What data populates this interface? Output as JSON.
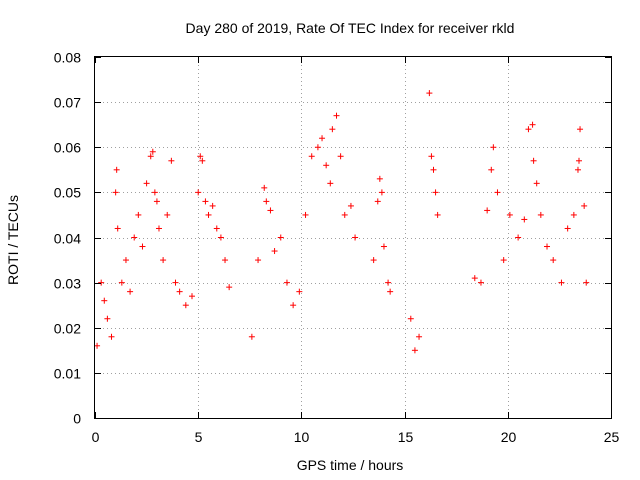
{
  "chart_data": {
    "type": "scatter",
    "title": "Day 280 of 2019, Rate Of TEC Index for receiver rkld",
    "xlabel": "GPS time / hours",
    "ylabel": "ROTI / TECUs",
    "xlim": [
      0,
      25
    ],
    "ylim": [
      0,
      0.08
    ],
    "x_ticks": [
      0,
      5,
      10,
      15,
      20,
      25
    ],
    "x_tick_labels": [
      "0",
      "5",
      "10",
      "15",
      "20",
      "25"
    ],
    "y_ticks": [
      0,
      0.01,
      0.02,
      0.03,
      0.04,
      0.05,
      0.06,
      0.07,
      0.08
    ],
    "y_tick_labels": [
      "0",
      "0.01",
      "0.02",
      "0.03",
      "0.04",
      "0.05",
      "0.06",
      "0.07",
      "0.08"
    ],
    "grid": true,
    "marker": "+",
    "series_color": "#ff0000",
    "series": [
      {
        "name": "ROTI",
        "x": [
          0.1,
          0.3,
          0.45,
          0.6,
          0.8,
          1.0,
          1.05,
          1.1,
          1.3,
          1.5,
          1.7,
          1.9,
          2.1,
          2.3,
          2.5,
          2.7,
          2.8,
          2.9,
          3.0,
          3.1,
          3.3,
          3.5,
          3.7,
          3.9,
          4.1,
          4.4,
          4.7,
          5.0,
          5.1,
          5.2,
          5.35,
          5.5,
          5.7,
          5.9,
          6.1,
          6.3,
          6.5,
          7.6,
          7.9,
          8.2,
          8.3,
          8.5,
          8.7,
          9.0,
          9.3,
          9.6,
          9.9,
          10.2,
          10.5,
          10.8,
          11.0,
          11.2,
          11.4,
          11.5,
          11.7,
          11.9,
          12.1,
          12.4,
          12.6,
          13.5,
          13.7,
          13.8,
          13.9,
          14.0,
          14.2,
          14.3,
          15.3,
          15.5,
          15.7,
          16.2,
          16.3,
          16.4,
          16.5,
          16.6,
          18.4,
          18.7,
          19.0,
          19.2,
          19.3,
          19.5,
          19.8,
          20.1,
          20.5,
          20.8,
          21.0,
          21.2,
          21.25,
          21.4,
          21.6,
          21.9,
          22.2,
          22.6,
          22.9,
          23.2,
          23.4,
          23.45,
          23.5,
          23.7,
          23.8
        ],
        "y": [
          0.016,
          0.03,
          0.026,
          0.022,
          0.018,
          0.05,
          0.055,
          0.042,
          0.03,
          0.035,
          0.028,
          0.04,
          0.045,
          0.038,
          0.052,
          0.058,
          0.059,
          0.05,
          0.048,
          0.042,
          0.035,
          0.045,
          0.057,
          0.03,
          0.028,
          0.025,
          0.027,
          0.05,
          0.058,
          0.057,
          0.048,
          0.045,
          0.047,
          0.042,
          0.04,
          0.035,
          0.029,
          0.018,
          0.035,
          0.051,
          0.048,
          0.046,
          0.037,
          0.04,
          0.03,
          0.025,
          0.028,
          0.045,
          0.058,
          0.06,
          0.062,
          0.056,
          0.052,
          0.064,
          0.067,
          0.058,
          0.045,
          0.047,
          0.04,
          0.035,
          0.048,
          0.053,
          0.05,
          0.038,
          0.03,
          0.028,
          0.022,
          0.015,
          0.018,
          0.072,
          0.058,
          0.055,
          0.05,
          0.045,
          0.031,
          0.03,
          0.046,
          0.055,
          0.06,
          0.05,
          0.035,
          0.045,
          0.04,
          0.044,
          0.064,
          0.065,
          0.057,
          0.052,
          0.045,
          0.038,
          0.035,
          0.03,
          0.042,
          0.045,
          0.055,
          0.057,
          0.064,
          0.047,
          0.03
        ]
      }
    ],
    "gaps_hours": [
      [
        6.6,
        7.5
      ],
      [
        12.8,
        13.4
      ],
      [
        14.5,
        15.2
      ],
      [
        16.9,
        18.3
      ],
      [
        23.9,
        25
      ]
    ]
  }
}
